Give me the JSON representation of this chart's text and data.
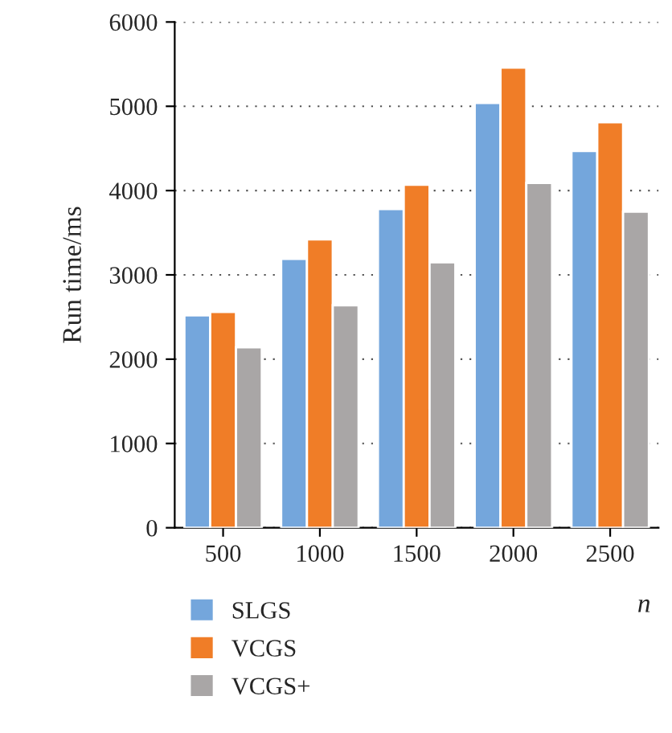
{
  "chart_data": {
    "type": "bar",
    "ylabel": "Run time/ms",
    "xlabel": "n",
    "categories": [
      "500",
      "1000",
      "1500",
      "2000",
      "2500"
    ],
    "series": [
      {
        "name": "SLGS",
        "color": "#74a6dc",
        "values": [
          2520,
          3190,
          3780,
          5040,
          4470
        ]
      },
      {
        "name": "VCGS",
        "color": "#f07d27",
        "values": [
          2560,
          3420,
          4070,
          5460,
          4810
        ]
      },
      {
        "name": "VCGS+",
        "color": "#a9a6a6",
        "values": [
          2140,
          2640,
          3150,
          4090,
          3750
        ]
      }
    ],
    "ylim": [
      0,
      6000
    ],
    "yticks": [
      0,
      1000,
      2000,
      3000,
      4000,
      5000,
      6000
    ],
    "grid": "y",
    "legend": "bottom"
  }
}
